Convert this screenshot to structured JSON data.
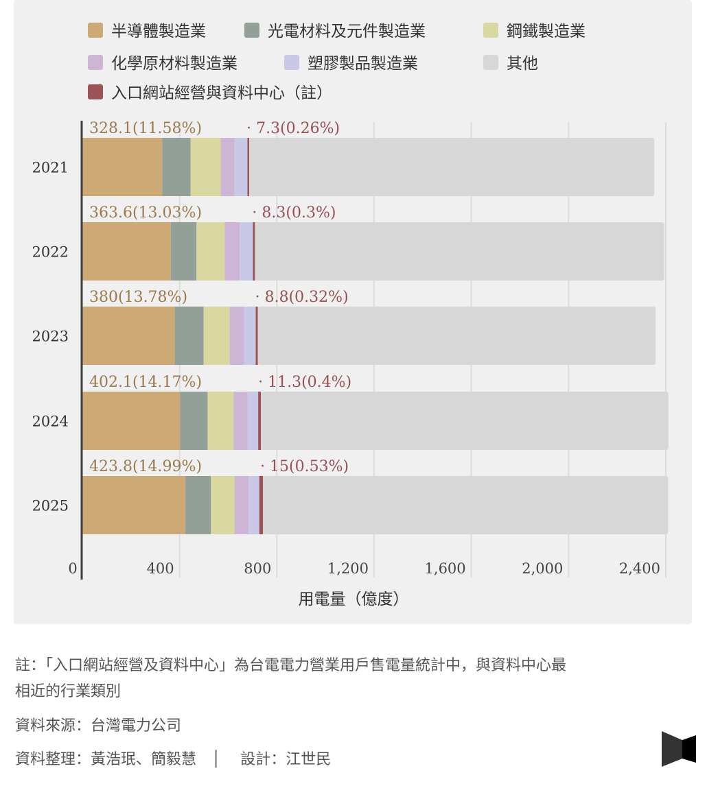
{
  "chart_data": {
    "type": "bar",
    "orientation": "horizontal",
    "stacked": true,
    "categories": [
      "2021",
      "2022",
      "2023",
      "2024",
      "2025"
    ],
    "series": [
      {
        "name": "半導體製造業",
        "color": "#cca975",
        "values": [
          328.1,
          363.6,
          380,
          402.1,
          423.8
        ]
      },
      {
        "name": "光電材料及元件製造業",
        "color": "#92a097",
        "values": [
          117,
          106,
          119,
          113,
          105
        ]
      },
      {
        "name": "鋼鐵製造業",
        "color": "#d9d8a0",
        "values": [
          124,
          116,
          107,
          107,
          98
        ]
      },
      {
        "name": "化學原材料製造業",
        "color": "#ccb5d5",
        "values": [
          56,
          62,
          59,
          57,
          57
        ]
      },
      {
        "name": "塑膠製品製造業",
        "color": "#c9c9e7",
        "values": [
          54,
          54,
          48,
          44,
          44
        ]
      },
      {
        "name": "入口網站經營與資料中心（註）",
        "color": "#9b5357",
        "values": [
          7.3,
          8.3,
          8.8,
          11.3,
          15
        ]
      },
      {
        "name": "其他",
        "color": "#d7d7d7",
        "values": [
          1666,
          1684,
          1636,
          1676,
          1667
        ]
      }
    ],
    "legend_order": [
      0,
      1,
      2,
      3,
      4,
      6,
      5
    ],
    "legend_placement": "top",
    "semiconductor_labels": [
      "328.1(11.58%)",
      "363.6(13.03%)",
      "380(13.78%)",
      "402.1(14.17%)",
      "423.8(14.99%)"
    ],
    "datacenter_labels": [
      "· 7.3(0.26%)",
      "· 8.3(0.3%)",
      "· 8.8(0.32%)",
      "· 11.3(0.4%)",
      "· 15(0.53%)"
    ],
    "semiconductor_label_color": "#9c7a4e",
    "datacenter_label_color": "#9b4f55",
    "xticks": [
      0,
      400,
      800,
      1200,
      1600,
      2000,
      2400
    ],
    "xtick_labels": [
      "0",
      "400",
      "800",
      "1,200",
      "1,600",
      "2,000",
      "2,400"
    ],
    "xlim": [
      0,
      2400
    ],
    "xlabel": "用電量（億度）",
    "ylabel": "",
    "grid": true
  },
  "notes": {
    "footnote_line1": "註：「入口網站經營及資料中心」為台電電力營業用戶售電量統計中，與資料中心最",
    "footnote_line2": "相近的行業類別",
    "source": "資料來源：台灣電力公司",
    "credits": "資料整理：黃浩珉、簡毅慧　│　 設計：江世民"
  },
  "logo": {
    "icon": "bowtie-logo-icon"
  }
}
